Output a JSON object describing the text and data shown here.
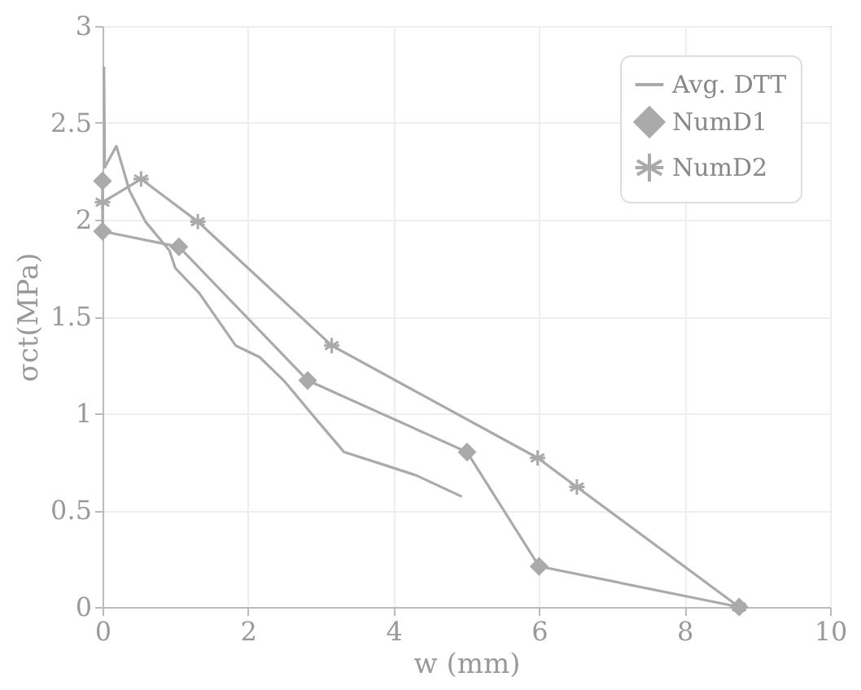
{
  "chart_data": {
    "type": "line",
    "xlabel": "w (mm)",
    "ylabel": "σct(MPa)",
    "xlim": [
      0,
      10
    ],
    "ylim": [
      0,
      3
    ],
    "xticks": [
      0,
      2,
      4,
      6,
      8,
      10
    ],
    "yticks": [
      0,
      0.5,
      1,
      1.5,
      2,
      2.5,
      3
    ],
    "grid": true,
    "legend": "top right",
    "series": [
      {
        "name": "Avg. DTT",
        "color": "#aaaaaa",
        "marker": "none",
        "x": [
          0.02,
          0.03,
          0.19,
          0.37,
          0.59,
          0.92,
          1.0,
          1.33,
          1.83,
          2.16,
          2.49,
          2.98,
          3.32,
          3.82,
          4.31,
          4.94
        ],
        "values": [
          2.79,
          2.27,
          2.38,
          2.15,
          1.99,
          1.84,
          1.75,
          1.62,
          1.35,
          1.29,
          1.17,
          0.95,
          0.8,
          0.74,
          0.68,
          0.57
        ]
      },
      {
        "name": "NumD1",
        "color": "#aaaaaa",
        "marker": "diamond",
        "x": [
          0,
          0,
          1.05,
          2.82,
          5.01,
          6.0,
          8.75
        ],
        "values": [
          2.2,
          1.94,
          1.86,
          1.17,
          0.8,
          0.21,
          0
        ]
      },
      {
        "name": "NumD2",
        "color": "#aaaaaa",
        "marker": "cross",
        "x": [
          0,
          0.53,
          1.31,
          3.15,
          5.98,
          6.52,
          8.75
        ],
        "values": [
          2.09,
          2.21,
          1.99,
          1.35,
          0.77,
          0.62,
          0
        ]
      }
    ]
  }
}
